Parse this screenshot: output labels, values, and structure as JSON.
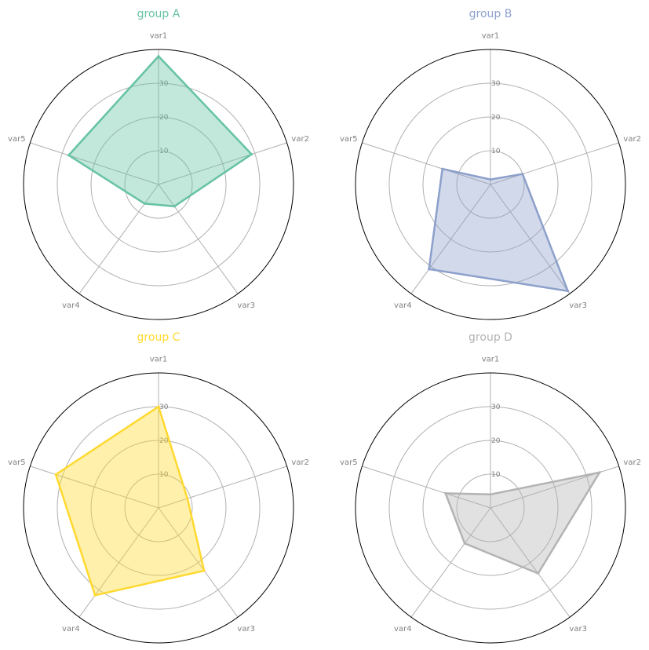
{
  "chart_data": [
    {
      "type": "radar",
      "title": "group A",
      "color": "#66c2a5",
      "categories": [
        "var1",
        "var2",
        "var3",
        "var4",
        "var5"
      ],
      "values": [
        38,
        29,
        8,
        7,
        28
      ],
      "rlim": [
        0,
        40
      ],
      "rticks": [
        "10",
        "20",
        "30"
      ],
      "rtick_values": [
        10,
        20,
        30
      ]
    },
    {
      "type": "radar",
      "title": "group B",
      "color": "#8da0cb",
      "categories": [
        "var1",
        "var2",
        "var3",
        "var4",
        "var5"
      ],
      "values": [
        1.5,
        10,
        39,
        31,
        15
      ],
      "rlim": [
        0,
        40
      ],
      "rticks": [
        "10",
        "20",
        "30"
      ],
      "rtick_values": [
        10,
        20,
        30
      ]
    },
    {
      "type": "radar",
      "title": "group C",
      "color": "#ffd92f",
      "categories": [
        "var1",
        "var2",
        "var3",
        "var4",
        "var5"
      ],
      "values": [
        30,
        9,
        23,
        32,
        32
      ],
      "rlim": [
        0,
        40
      ],
      "rticks": [
        "10",
        "20",
        "30"
      ],
      "rtick_values": [
        10,
        20,
        30
      ]
    },
    {
      "type": "radar",
      "title": "group D",
      "color": "#b3b3b3",
      "categories": [
        "var1",
        "var2",
        "var3",
        "var4",
        "var5"
      ],
      "values": [
        4,
        34,
        24,
        13,
        14
      ],
      "rlim": [
        0,
        40
      ],
      "rticks": [
        "10",
        "20",
        "30"
      ],
      "rtick_values": [
        10,
        20,
        30
      ]
    }
  ]
}
